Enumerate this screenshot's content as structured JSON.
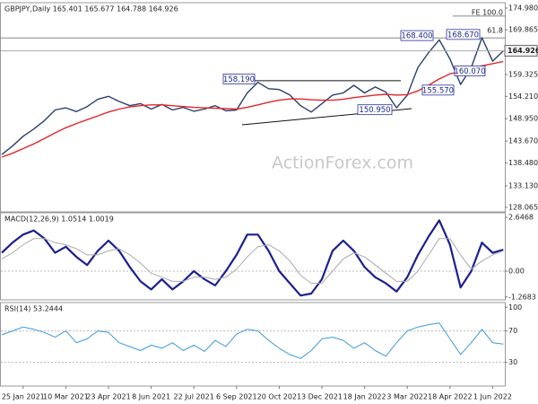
{
  "chart_data": [
    {
      "type": "line",
      "title": "GBPJPY,Daily 165.401 165.677 164.788 164.926",
      "watermark": "ActionForex.com",
      "ylim": [
        127.0,
        176.25
      ],
      "yticks": [
        {
          "value": 174.98,
          "label": "174.980"
        },
        {
          "value": 169.865,
          "label": "169.865"
        },
        {
          "value": 159.325,
          "label": "159.325"
        },
        {
          "value": 154.21,
          "label": "154.210"
        },
        {
          "value": 148.95,
          "label": "148.950"
        },
        {
          "value": 143.67,
          "label": "143.670"
        },
        {
          "value": 138.48,
          "label": "138.480"
        },
        {
          "value": 133.13,
          "label": "133.130"
        },
        {
          "value": 128.065,
          "label": "128.065"
        }
      ],
      "last_price": 164.926,
      "hlines": [
        167.95
      ],
      "series": [
        {
          "name": "GBPJPY",
          "color": "#2b3f6b",
          "values": [
            140.5,
            142.5,
            144.8,
            146.5,
            148.5,
            151.0,
            151.5,
            150.6,
            151.8,
            153.5,
            154.2,
            153.0,
            152.0,
            152.5,
            151.2,
            152.3,
            151.0,
            151.6,
            150.7,
            151.2,
            152.0,
            150.8,
            151.0,
            155.0,
            157.5,
            156.0,
            155.8,
            154.5,
            152.0,
            150.5,
            152.5,
            154.5,
            155.0,
            156.8,
            155.0,
            156.4,
            155.2,
            151.5,
            154.5,
            161.0,
            164.5,
            167.5,
            163.0,
            157.0,
            161.0,
            168.0,
            162.5,
            164.9
          ]
        },
        {
          "name": "MA",
          "color": "#e3262b",
          "values": [
            139.9,
            140.8,
            141.9,
            143.0,
            144.3,
            145.6,
            146.8,
            147.8,
            148.7,
            149.6,
            150.5,
            151.2,
            151.7,
            152.0,
            152.2,
            152.2,
            152.0,
            151.8,
            151.6,
            151.5,
            151.4,
            151.3,
            151.2,
            151.6,
            152.2,
            152.8,
            153.3,
            153.6,
            153.6,
            153.4,
            153.3,
            153.3,
            153.5,
            153.9,
            154.2,
            154.5,
            154.7,
            154.5,
            154.6,
            155.5,
            156.8,
            158.3,
            159.5,
            160.0,
            160.6,
            161.4,
            161.9,
            162.4
          ]
        }
      ],
      "annotations": [
        {
          "label": "168.400",
          "value": 168.4
        },
        {
          "label": "168.670",
          "value": 168.67
        },
        {
          "label": "158.190",
          "value": 158.19
        },
        {
          "label": "150.950",
          "value": 150.95
        },
        {
          "label": "155.570",
          "value": 155.57
        },
        {
          "label": "160.070",
          "value": 160.07
        }
      ],
      "fib_levels": [
        {
          "label": "FE 100.0",
          "value": 173.1
        },
        {
          "label": "61.8",
          "value": 168.9
        }
      ],
      "trendlines": [
        [
          157.9,
          157.9
        ],
        [
          147.5,
          151.3
        ]
      ]
    },
    {
      "type": "line",
      "title": "MACD(12,26,9) 1.0514 1.0019",
      "ylim": [
        -1.41,
        2.87
      ],
      "yticks": [
        2.6468,
        {
          "value": 0,
          "label": "0.00"
        },
        -1.2683
      ],
      "hlines": [
        0
      ],
      "series": [
        {
          "name": "MACD",
          "color": "#1b1f8f",
          "width": 2.2,
          "values": [
            0.9,
            1.4,
            1.8,
            2.0,
            1.6,
            0.9,
            1.2,
            0.7,
            0.3,
            1.0,
            1.5,
            1.0,
            0.2,
            -0.5,
            -0.9,
            -0.4,
            -0.9,
            -0.5,
            0.0,
            -0.4,
            -0.7,
            0.0,
            0.8,
            1.8,
            1.8,
            1.0,
            0.0,
            -0.6,
            -1.2,
            -1.1,
            -0.4,
            1.0,
            1.5,
            1.0,
            0.2,
            -0.3,
            -0.6,
            -1.0,
            -0.3,
            0.8,
            1.7,
            2.5,
            1.3,
            -0.8,
            0.0,
            1.4,
            0.9,
            1.05
          ]
        },
        {
          "name": "Signal",
          "color": "#aaaaaa",
          "width": 1,
          "values": [
            0.6,
            0.9,
            1.3,
            1.6,
            1.6,
            1.4,
            1.3,
            1.1,
            0.8,
            0.8,
            1.0,
            1.1,
            0.8,
            0.4,
            -0.1,
            -0.3,
            -0.5,
            -0.5,
            -0.3,
            -0.3,
            -0.4,
            -0.3,
            0.1,
            0.7,
            1.2,
            1.3,
            1.0,
            0.5,
            -0.2,
            -0.6,
            -0.6,
            0.0,
            0.6,
            0.9,
            0.7,
            0.3,
            -0.1,
            -0.5,
            -0.5,
            0.0,
            0.8,
            1.6,
            1.6,
            0.8,
            0.1,
            0.5,
            0.8,
            1.0
          ]
        }
      ]
    },
    {
      "type": "line",
      "title": "RSI(14) 53.2444",
      "ylim": [
        0,
        106
      ],
      "yticks": [
        100,
        70,
        30
      ],
      "hlines": [
        70,
        30
      ],
      "categories": [
        null,
        null,
        "25 Jan 2021",
        null,
        null,
        null,
        "10 Mar 2021",
        null,
        null,
        null,
        "23 Apr 2021",
        null,
        null,
        null,
        "8 Jun 2021",
        null,
        null,
        null,
        "22 Jul 2021",
        null,
        null,
        null,
        "6 Sep 2021",
        null,
        null,
        null,
        "20 Oct 2021",
        null,
        null,
        null,
        "3 Dec 2021",
        null,
        null,
        null,
        "18 Jan 2022",
        null,
        null,
        null,
        "3 Mar 2022",
        null,
        null,
        null,
        "18 Apr 2022",
        null,
        null,
        null,
        "1 Jun 2022",
        null
      ],
      "series": [
        {
          "name": "RSI",
          "color": "#3c9ad8",
          "width": 1,
          "values": [
            65,
            70,
            75,
            72,
            68,
            62,
            70,
            55,
            60,
            70,
            68,
            55,
            50,
            45,
            52,
            48,
            55,
            45,
            52,
            44,
            58,
            50,
            66,
            72,
            70,
            58,
            48,
            40,
            35,
            45,
            60,
            62,
            58,
            48,
            55,
            45,
            38,
            55,
            70,
            75,
            78,
            80,
            60,
            40,
            55,
            72,
            55,
            53.2444
          ]
        }
      ]
    }
  ]
}
